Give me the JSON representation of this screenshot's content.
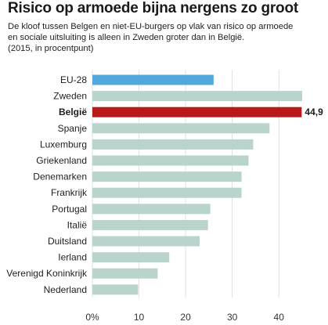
{
  "header": {
    "title": "Risico op armoede bijna nergens zo groot",
    "subtitle_lines": [
      "De kloof tussen Belgen en niet-EU-burgers op vlak van risico op armoede",
      "en sociale uitsluiting is alleen in Zweden groter dan in België.",
      "(2015, in procentpunt)"
    ]
  },
  "colors": {
    "eu": "#52a8dc",
    "belgium": "#b81a1c",
    "default": "#b9d3cd",
    "axis_text": "#333333",
    "grid": "#d8d8d8"
  },
  "chart_data": {
    "type": "bar",
    "orientation": "horizontal",
    "categories": [
      "EU-28",
      "Zweden",
      "België",
      "Spanje",
      "Luxemburg",
      "Griekenland",
      "Denemarken",
      "Frankrijk",
      "Portugal",
      "Italië",
      "Duitsland",
      "Ierland",
      "Verenigd Koninkrijk",
      "Nederland"
    ],
    "values": [
      26,
      45,
      44.9,
      38,
      34.5,
      33.5,
      32,
      32,
      25.3,
      24.8,
      23,
      16.5,
      14,
      9.8
    ],
    "highlight": [
      "none",
      "none",
      "belgium",
      "none",
      "none",
      "none",
      "none",
      "none",
      "none",
      "none",
      "none",
      "none",
      "none",
      "none"
    ],
    "data_labels": [
      "",
      "",
      "44,9",
      "",
      "",
      "",
      "",
      "",
      "",
      "",
      "",
      "",
      "",
      ""
    ],
    "bold_categories": [
      "België"
    ],
    "xlim": [
      0,
      45
    ],
    "xticks": [
      0,
      10,
      20,
      30,
      40
    ],
    "xtick_labels": [
      "0%",
      "10",
      "20",
      "30",
      "40"
    ],
    "grid": true,
    "legend": "none"
  }
}
